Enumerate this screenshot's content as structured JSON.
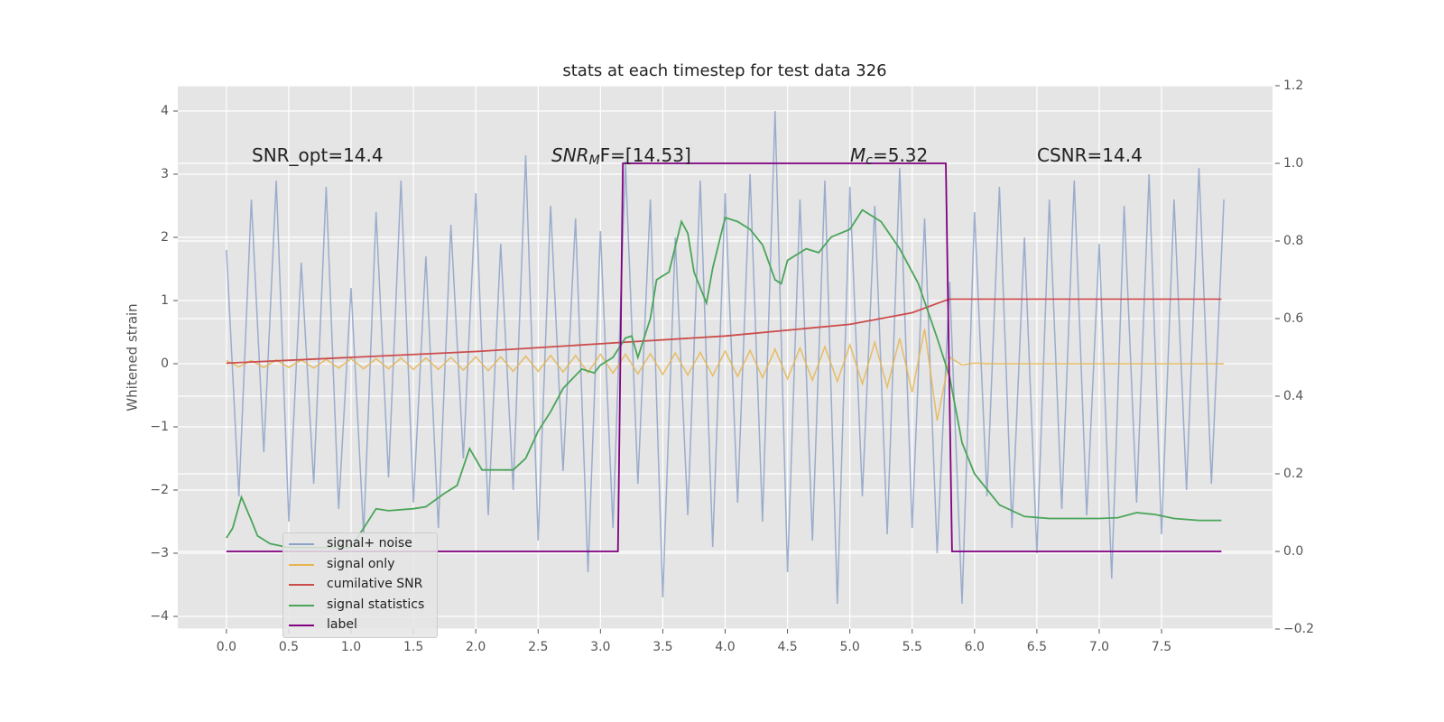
{
  "chart_data": {
    "type": "line",
    "title": "stats at each timestep for test data 326",
    "ylabel": "Whitened strain",
    "annotations": [
      [
        "SNR_opt=14.4"
      ],
      [
        "SNR",
        "M",
        "F=[14.53]"
      ],
      [
        "M",
        "c",
        "=5.32"
      ],
      [
        "CSNR=14.4"
      ]
    ],
    "xlim": [
      -0.39,
      8.39
    ],
    "xticks": [
      {
        "value": 0,
        "label": "0.0"
      },
      0.5,
      {
        "value": 1,
        "label": "1.0"
      },
      1.5,
      {
        "value": 2,
        "label": "2.0"
      },
      2.5,
      {
        "value": 3,
        "label": "3.0"
      },
      3.5,
      {
        "value": 4,
        "label": "4.0"
      },
      4.5,
      {
        "value": 5,
        "label": "5.0"
      },
      5.5,
      {
        "value": 6,
        "label": "6.0"
      },
      6.5,
      {
        "value": 7,
        "label": "7.0"
      },
      7.5
    ],
    "ylim": [
      -4.2,
      4.4
    ],
    "yticks": [
      {
        "value": -4,
        "label": "−4"
      },
      {
        "value": -3,
        "label": "−3"
      },
      {
        "value": -2,
        "label": "−2"
      },
      {
        "value": -1,
        "label": "−1"
      },
      0,
      1,
      2,
      3,
      4
    ],
    "y2lim": [
      -0.2,
      1.2
    ],
    "y2ticks": [
      {
        "value": -0.2,
        "label": "−0.2"
      },
      {
        "value": 0,
        "label": "0.0"
      },
      0.2,
      0.4,
      0.6,
      0.8,
      {
        "value": 1,
        "label": "1.0"
      },
      1.2
    ],
    "grid": true,
    "legend": "lower left",
    "x": [
      0,
      0.1,
      0.2,
      0.3,
      0.4,
      0.5,
      0.6,
      0.7,
      0.8,
      0.9,
      1,
      1.1,
      1.2,
      1.3,
      1.4,
      1.5,
      1.6,
      1.7,
      1.8,
      1.9,
      2,
      2.1,
      2.2,
      2.3,
      2.4,
      2.5,
      2.6,
      2.7,
      2.8,
      2.9,
      3,
      3.1,
      3.2,
      3.3,
      3.4,
      3.5,
      3.6,
      3.7,
      3.8,
      3.9,
      4,
      4.1,
      4.2,
      4.3,
      4.4,
      4.5,
      4.6,
      4.7,
      4.8,
      4.9,
      5,
      5.1,
      5.2,
      5.3,
      5.4,
      5.5,
      5.6,
      5.7,
      5.8,
      5.9,
      6,
      6.1,
      6.2,
      6.3,
      6.4,
      6.5,
      6.6,
      6.7,
      6.8,
      6.9,
      7,
      7.1,
      7.2,
      7.3,
      7.4,
      7.5,
      7.6,
      7.7,
      7.8,
      7.9,
      8
    ],
    "series": [
      {
        "name": "signal+ noise",
        "color": "#8da2c9",
        "values": [
          1.8,
          -2.1,
          2.6,
          -1.4,
          2.9,
          -2.5,
          1.6,
          -1.9,
          2.8,
          -2.3,
          1.2,
          -2.7,
          2.4,
          -1.8,
          2.9,
          -2.2,
          1.7,
          -2.6,
          2.2,
          -1.5,
          2.7,
          -2.4,
          1.9,
          -2.0,
          3.3,
          -2.8,
          2.5,
          -1.7,
          2.3,
          -3.3,
          2.1,
          -2.6,
          3.2,
          -1.9,
          2.6,
          -3.7,
          2.0,
          -2.4,
          2.9,
          -2.9,
          2.7,
          -2.2,
          3.0,
          -2.5,
          4.0,
          -3.3,
          2.6,
          -2.8,
          2.9,
          -3.8,
          2.8,
          -2.1,
          2.5,
          -2.7,
          3.1,
          -2.6,
          2.3,
          -3.0,
          1.3,
          -3.8,
          2.4,
          -2.1,
          2.8,
          -2.6,
          2.0,
          -3.0,
          2.6,
          -2.3,
          2.9,
          -2.4,
          1.9,
          -3.4,
          2.5,
          -2.2,
          3.0,
          -2.7,
          2.6,
          -2.0,
          3.1,
          -1.9,
          2.6
        ]
      },
      {
        "name": "signal only",
        "color": "#e8b54f",
        "values": [
          0.05,
          -0.05,
          0.05,
          -0.06,
          0.06,
          -0.06,
          0.06,
          -0.07,
          0.07,
          -0.07,
          0.08,
          -0.08,
          0.08,
          -0.08,
          0.09,
          -0.09,
          0.09,
          -0.09,
          0.1,
          -0.1,
          0.11,
          -0.11,
          0.11,
          -0.12,
          0.12,
          -0.12,
          0.13,
          -0.13,
          0.13,
          -0.14,
          0.15,
          -0.15,
          0.15,
          -0.16,
          0.16,
          -0.17,
          0.17,
          -0.18,
          0.18,
          -0.19,
          0.2,
          -0.2,
          0.21,
          -0.22,
          0.23,
          -0.24,
          0.25,
          -0.26,
          0.27,
          -0.28,
          0.3,
          -0.32,
          0.34,
          -0.37,
          0.4,
          -0.45,
          0.55,
          -0.9,
          0.1,
          -0.02,
          0.01,
          0,
          0,
          0,
          0,
          0,
          0,
          0,
          0,
          0,
          0,
          0,
          0,
          0,
          0,
          0,
          0,
          0,
          0,
          0,
          0
        ]
      },
      {
        "name": "cumilative SNR",
        "color": "#cc4c4c",
        "axis": "y2",
        "x": [
          0,
          1,
          2,
          3,
          4,
          5,
          5.5,
          5.75,
          5.8,
          7.98
        ],
        "values": [
          0.485,
          0.5,
          0.515,
          0.535,
          0.555,
          0.585,
          0.615,
          0.645,
          0.65,
          0.65
        ]
      },
      {
        "name": "signal statistics",
        "color": "#4aa55a",
        "axis": "y2",
        "x": [
          0,
          0.05,
          0.12,
          0.2,
          0.25,
          0.35,
          0.5,
          1,
          1.1,
          1.2,
          1.3,
          1.5,
          1.6,
          1.75,
          1.85,
          1.95,
          2.05,
          2.3,
          2.4,
          2.5,
          2.6,
          2.7,
          2.85,
          2.95,
          3,
          3.1,
          3.2,
          3.25,
          3.3,
          3.4,
          3.45,
          3.55,
          3.65,
          3.7,
          3.75,
          3.85,
          3.9,
          4,
          4.1,
          4.2,
          4.3,
          4.4,
          4.45,
          4.5,
          4.65,
          4.75,
          4.85,
          5,
          5.1,
          5.25,
          5.4,
          5.55,
          5.7,
          5.8,
          5.9,
          6,
          6.2,
          6.4,
          6.6,
          7,
          7.15,
          7.3,
          7.45,
          7.6,
          7.8,
          7.98
        ],
        "values": [
          0.035,
          0.06,
          0.14,
          0.08,
          0.04,
          0.02,
          0.01,
          0.01,
          0.06,
          0.11,
          0.105,
          0.11,
          0.115,
          0.15,
          0.17,
          0.265,
          0.21,
          0.21,
          0.24,
          0.31,
          0.36,
          0.42,
          0.47,
          0.46,
          0.48,
          0.5,
          0.55,
          0.555,
          0.5,
          0.6,
          0.7,
          0.72,
          0.85,
          0.82,
          0.72,
          0.64,
          0.73,
          0.86,
          0.85,
          0.83,
          0.79,
          0.7,
          0.69,
          0.75,
          0.78,
          0.77,
          0.81,
          0.83,
          0.88,
          0.85,
          0.78,
          0.69,
          0.55,
          0.45,
          0.28,
          0.2,
          0.12,
          0.09,
          0.085,
          0.085,
          0.087,
          0.1,
          0.095,
          0.085,
          0.08,
          0.08
        ]
      },
      {
        "name": "label",
        "color": "#800080",
        "axis": "y2",
        "x": [
          0,
          3.14,
          3.18,
          5.77,
          5.82,
          7.98
        ],
        "values": [
          0,
          0,
          1,
          1,
          0,
          0
        ]
      }
    ]
  }
}
